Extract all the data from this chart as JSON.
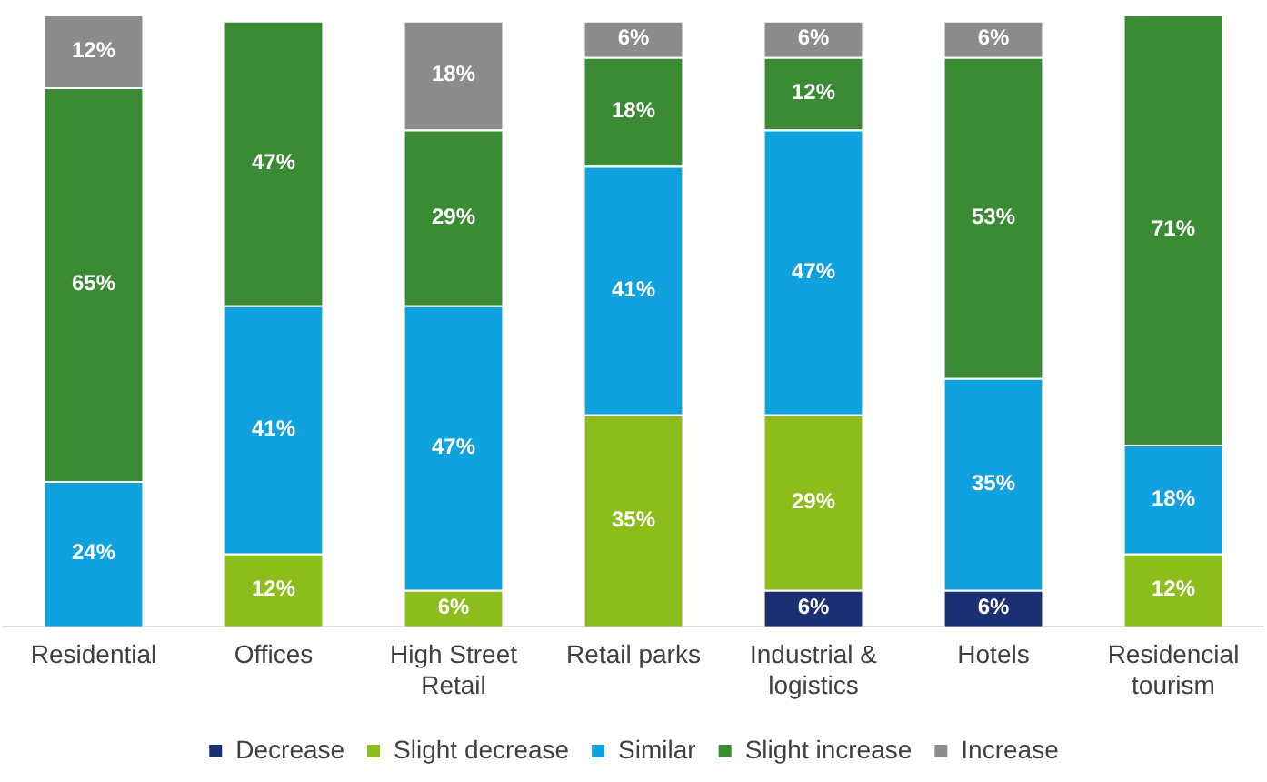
{
  "chart_data": {
    "type": "bar",
    "stacked": true,
    "grid": false,
    "legend": "bottom",
    "categories": [
      "Residential",
      "Offices",
      "High Street Retail",
      "Retail parks",
      "Industrial & logistics",
      "Hotels",
      "Residencial tourism"
    ],
    "series": [
      {
        "name": "Decrease",
        "color": "#1b2f73",
        "values": [
          null,
          null,
          null,
          null,
          6,
          6,
          null
        ],
        "value_labels": [
          null,
          null,
          null,
          null,
          "6%",
          "6%",
          null
        ]
      },
      {
        "name": "Slight decrease",
        "color": "#8cbd1a",
        "values": [
          null,
          12,
          6,
          35,
          29,
          null,
          12
        ],
        "value_labels": [
          null,
          "12%",
          "6%",
          "35%",
          "29%",
          null,
          "12%"
        ]
      },
      {
        "name": "Similar",
        "color": "#10a2de",
        "values": [
          24,
          41,
          47,
          41,
          47,
          35,
          18
        ],
        "value_labels": [
          "24%",
          "41%",
          "47%",
          "41%",
          "47%",
          "35%",
          "18%"
        ]
      },
      {
        "name": "Slight increase",
        "color": "#3b8b35",
        "values": [
          65,
          47,
          29,
          18,
          12,
          53,
          71
        ],
        "value_labels": [
          "65%",
          "47%",
          "29%",
          "18%",
          "12%",
          "53%",
          "71%"
        ]
      },
      {
        "name": "Increase",
        "color": "#8c8c8c",
        "values": [
          12,
          null,
          18,
          6,
          6,
          6,
          null
        ],
        "value_labels": [
          "12%",
          null,
          "18%",
          "6%",
          "6%",
          "6%",
          null
        ]
      }
    ]
  }
}
